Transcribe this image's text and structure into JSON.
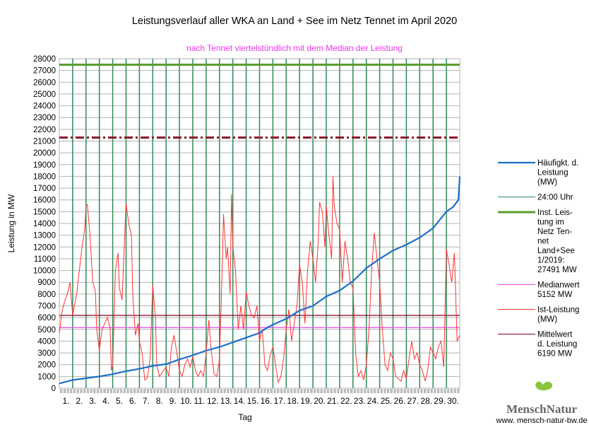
{
  "chart_data": {
    "type": "line",
    "title": "Leistungsverlauf aller WKA an Land + See im Netz Tennet im April 2020",
    "subtitle": "nach Tennet viertelstündlich mit dem Median der Leistung",
    "xlabel": "Tag",
    "ylabel": "Leistung in MW",
    "ylim": [
      0,
      28000
    ],
    "ystep": 1000,
    "xlim": [
      0,
      30
    ],
    "x_tick_labels": [
      "1.",
      "2.",
      "3.",
      "4.",
      "5.",
      "6.",
      "7.",
      "8.",
      "9.",
      "10.",
      "11.",
      "12.",
      "13.",
      "14.",
      "15.",
      "16.",
      "17.",
      "18.",
      "19.",
      "20.",
      "21.",
      "22.",
      "23.",
      "24.",
      "25.",
      "26.",
      "27.",
      "28.",
      "29.",
      "30."
    ],
    "grid": true,
    "legend_position": "right",
    "series": [
      {
        "name": "Häufigkt. d. Leistung (MW)",
        "color": "#1f6fc8",
        "type": "line",
        "x": [
          0,
          1,
          2,
          3,
          4,
          5,
          6,
          7,
          8,
          9,
          10,
          11,
          12,
          13,
          14,
          15,
          15.5,
          16,
          17,
          18,
          19,
          20,
          21,
          22,
          23,
          24,
          25,
          26,
          27,
          28,
          29,
          29.5,
          29.9,
          30
        ],
        "y": [
          400,
          700,
          850,
          1000,
          1200,
          1450,
          1650,
          1900,
          2050,
          2450,
          2800,
          3200,
          3500,
          3900,
          4300,
          4700,
          5100,
          5400,
          5900,
          6600,
          7000,
          7800,
          8300,
          9100,
          10200,
          11000,
          11700,
          12200,
          12800,
          13600,
          15000,
          15400,
          16000,
          18000
        ]
      },
      {
        "name": "24:00 Uhr",
        "color": "#2e8b57",
        "type": "vlines",
        "x": [
          1,
          2,
          3,
          4,
          5,
          6,
          7,
          8,
          9,
          10,
          11,
          12,
          13,
          14,
          15,
          16,
          17,
          18,
          19,
          20,
          21,
          22,
          23,
          24,
          25,
          26,
          27,
          28,
          29
        ]
      },
      {
        "name": "Inst. Leis-tung im Netz Ten-net Land+See 1/2019: 27491 MW",
        "color": "#5a9e2f",
        "type": "hline",
        "y": 27491
      },
      {
        "name": "Medianwert 5152 MW",
        "color": "#ee44ee",
        "type": "hline",
        "y": 5152
      },
      {
        "name": "Ist-Leistung (MW)",
        "color": "#ff3333",
        "type": "line",
        "x": [
          0,
          0.2,
          0.4,
          0.6,
          0.8,
          1,
          1.3,
          1.5,
          1.7,
          1.9,
          2,
          2.1,
          2.3,
          2.5,
          2.7,
          2.8,
          3,
          3.2,
          3.4,
          3.6,
          3.8,
          3.9,
          4,
          4.2,
          4.4,
          4.5,
          4.7,
          4.9,
          5,
          5.2,
          5.4,
          5.5,
          5.7,
          5.9,
          6,
          6.2,
          6.4,
          6.6,
          6.8,
          7,
          7.2,
          7.3,
          7.5,
          7.8,
          8,
          8.2,
          8.4,
          8.6,
          8.8,
          9,
          9.2,
          9.4,
          9.6,
          9.8,
          10,
          10.2,
          10.4,
          10.6,
          10.8,
          11,
          11.2,
          11.4,
          11.6,
          11.8,
          12,
          12.2,
          12.3,
          12.5,
          12.6,
          12.8,
          12.9,
          13,
          13.2,
          13.4,
          13.6,
          13.8,
          14,
          14.2,
          14.4,
          14.6,
          14.8,
          15,
          15.2,
          15.4,
          15.6,
          15.8,
          16,
          16.2,
          16.4,
          16.6,
          16.8,
          17,
          17.2,
          17.4,
          17.6,
          17.8,
          18,
          18.2,
          18.4,
          18.6,
          18.8,
          19,
          19.2,
          19.4,
          19.5,
          19.7,
          19.9,
          20,
          20.2,
          20.4,
          20.5,
          20.6,
          20.8,
          21,
          21.2,
          21.4,
          21.6,
          21.8,
          22,
          22.2,
          22.4,
          22.6,
          22.8,
          23,
          23.2,
          23.4,
          23.6,
          23.8,
          24,
          24.2,
          24.4,
          24.6,
          24.8,
          25,
          25.2,
          25.4,
          25.6,
          25.8,
          26,
          26.2,
          26.4,
          26.6,
          26.8,
          27,
          27.2,
          27.4,
          27.6,
          27.8,
          28,
          28.2,
          28.4,
          28.6,
          28.8,
          29,
          29.2,
          29.4,
          29.6,
          29.8,
          30
        ],
        "y": [
          4700,
          6500,
          7400,
          8000,
          9000,
          6200,
          8000,
          10000,
          12000,
          13500,
          15500,
          15600,
          13000,
          9000,
          8300,
          5000,
          3200,
          5000,
          5500,
          6000,
          5200,
          1500,
          2000,
          10000,
          11500,
          8500,
          7500,
          13000,
          15700,
          14000,
          13000,
          8000,
          4500,
          5500,
          4000,
          3000,
          700,
          900,
          2500,
          8800,
          6000,
          2000,
          1000,
          1500,
          1800,
          1000,
          3500,
          4500,
          3000,
          1500,
          1000,
          2000,
          2500,
          1800,
          2700,
          1500,
          1000,
          1500,
          1000,
          3000,
          5800,
          3000,
          1200,
          1000,
          2500,
          10000,
          14800,
          11000,
          12000,
          8000,
          16500,
          12000,
          10000,
          5000,
          7000,
          5000,
          8200,
          7000,
          6200,
          6000,
          7000,
          4000,
          5000,
          2000,
          1500,
          2800,
          3500,
          2000,
          500,
          1000,
          2500,
          5000,
          6700,
          4000,
          5500,
          7000,
          10500,
          9000,
          5500,
          10000,
          12500,
          11000,
          9000,
          12500,
          15800,
          15000,
          12000,
          15500,
          13000,
          11000,
          18000,
          15500,
          14000,
          13500,
          9000,
          12500,
          11000,
          9000,
          8500,
          3000,
          1000,
          1500,
          700,
          2000,
          5000,
          10000,
          13200,
          11000,
          9000,
          5000,
          2000,
          1500,
          3000,
          2500,
          1000,
          800,
          600,
          1500,
          800,
          2500,
          4000,
          2500,
          3000,
          2000,
          1500,
          600,
          1500,
          3500,
          3000,
          2500,
          3500,
          4000,
          1800,
          11800,
          10500,
          9000,
          11500,
          4000,
          4500
        ]
      },
      {
        "name": "Mittelwert d. Leistung 6190 MW",
        "color": "#800020",
        "type": "hline",
        "y": 6190
      }
    ],
    "legend_labels": [
      "Häufigkt. d. Leistung (MW)",
      "24:00 Uhr",
      "Inst. Leis-tung im Netz Ten-net Land+See 1/2019: 27491 MW",
      "Medianwert 5152 MW",
      "Ist-Leistung (MW)",
      "Mittelwert d. Leistung 6190 MW"
    ],
    "extra_lines": [
      {
        "type": "hline-dashdot",
        "y": 21300,
        "color": "#8b1a2b"
      },
      {
        "type": "vline",
        "x": 15,
        "color": "#a040c0"
      }
    ]
  },
  "logo": {
    "brand": "MenschNatur",
    "url": "www. mensch-natur-bw.de"
  }
}
